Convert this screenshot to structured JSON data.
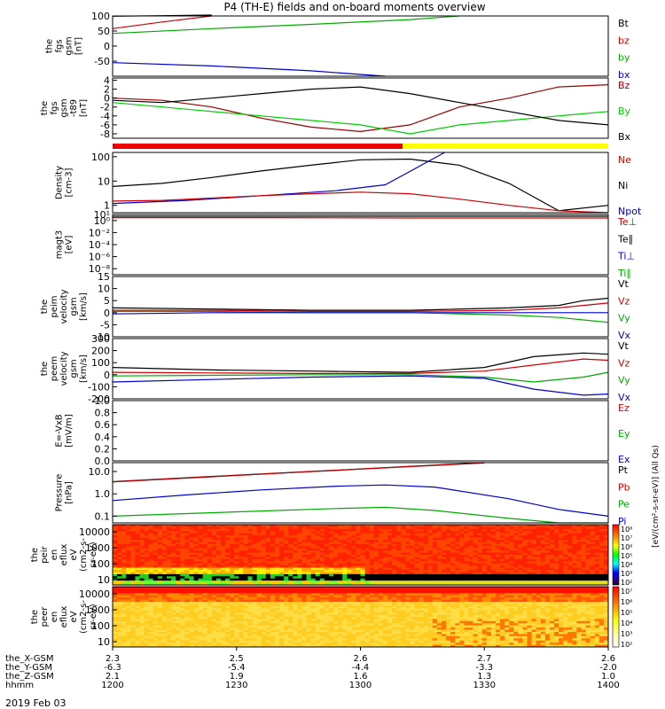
{
  "title": "P4 (TH-E) fields and on-board moments overview",
  "date_label": "2019 Feb 03",
  "colorbar_label": "[eV/(cm²-s-sr-eV)] (All Qs)",
  "colorbar_ticks": [
    "10⁸",
    "10⁷",
    "10⁶",
    "10⁵",
    "10⁴",
    "10³",
    "10²"
  ],
  "ephemeris": {
    "row_labels": [
      "the_X-GSM",
      "the_Y-GSM",
      "the_Z-GSM",
      "hhmm"
    ],
    "columns": [
      [
        "2.3",
        "-6.3",
        "2.1",
        "1200"
      ],
      [
        "2.5",
        "-5.4",
        "1.9",
        "1230"
      ],
      [
        "2.6",
        "-4.4",
        "1.6",
        "1300"
      ],
      [
        "2.7",
        "-3.3",
        "1.3",
        "1330"
      ],
      [
        "2.6",
        "-2.0",
        "1.0",
        "1400"
      ]
    ]
  },
  "chart_data": [
    {
      "type": "line",
      "ylabel": [
        "the",
        "fgs",
        "gsm",
        "[nT]"
      ],
      "ylim": [
        -100,
        100
      ],
      "yticks": [
        "100",
        "50",
        "0",
        "-50"
      ],
      "legend": [
        {
          "name": "Bt",
          "color": "#000000"
        },
        {
          "name": "bz",
          "color": "#cc0000"
        },
        {
          "name": "by",
          "color": "#00aa00"
        },
        {
          "name": "bx",
          "color": "#0000cc"
        }
      ],
      "series": [
        {
          "name": "Bt",
          "color": "#000000",
          "x": [
            0,
            0.1,
            0.2
          ],
          "y": [
            99,
            101,
            103
          ]
        },
        {
          "name": "bz",
          "color": "#cc0000",
          "x": [
            0,
            0.1,
            0.2
          ],
          "y": [
            58,
            80,
            100
          ]
        },
        {
          "name": "by",
          "color": "#00aa00",
          "x": [
            0,
            0.2,
            0.4,
            0.6,
            0.7
          ],
          "y": [
            42,
            58,
            72,
            88,
            100
          ]
        },
        {
          "name": "bx",
          "color": "#0000cc",
          "x": [
            0,
            0.2,
            0.4,
            0.55
          ],
          "y": [
            -55,
            -66,
            -82,
            -100
          ]
        }
      ]
    },
    {
      "type": "line",
      "ylabel": [
        "the",
        "fgs",
        "gsm",
        "-t89",
        "[nT]"
      ],
      "ylim": [
        -9,
        4.5
      ],
      "yticks": [
        "4",
        "2",
        "0",
        "-2",
        "-4",
        "-6",
        "-8"
      ],
      "legend": [
        {
          "name": "Bz",
          "color": "#990000"
        },
        {
          "name": "By",
          "color": "#00cc00"
        },
        {
          "name": "Bx",
          "color": "#000000"
        }
      ],
      "series": [
        {
          "name": "Bz",
          "color": "#990000",
          "x": [
            0,
            0.1,
            0.2,
            0.3,
            0.4,
            0.5,
            0.6,
            0.7,
            0.8,
            0.9,
            1.0
          ],
          "y": [
            0,
            -0.5,
            -2,
            -4.5,
            -6.5,
            -7.5,
            -6,
            -2,
            0,
            2.5,
            3
          ]
        },
        {
          "name": "By",
          "color": "#00cc00",
          "x": [
            0,
            0.1,
            0.2,
            0.3,
            0.4,
            0.5,
            0.6,
            0.7,
            0.8,
            0.9,
            1.0
          ],
          "y": [
            -1,
            -2,
            -3,
            -4,
            -5,
            -6,
            -8,
            -6,
            -5,
            -4,
            -3
          ]
        },
        {
          "name": "Bx",
          "color": "#000000",
          "x": [
            0,
            0.1,
            0.2,
            0.3,
            0.4,
            0.5,
            0.6,
            0.7,
            0.8,
            0.9,
            1.0
          ],
          "y": [
            -0.5,
            -1,
            0,
            1,
            2,
            2.5,
            1,
            -1,
            -3,
            -5,
            -6
          ]
        }
      ]
    },
    {
      "type": "line",
      "ylabel": [
        "Density",
        "[cm-3]"
      ],
      "ylog": true,
      "ylim": [
        0.5,
        150
      ],
      "yticks": [
        "100",
        "10",
        "1"
      ],
      "legend": [
        {
          "name": "Ne",
          "color": "#cc0000"
        },
        {
          "name": "Ni",
          "color": "#000000"
        },
        {
          "name": "Npot",
          "color": "#0000cc"
        }
      ],
      "series": [
        {
          "name": "Ni",
          "color": "#000000",
          "x": [
            0,
            0.1,
            0.2,
            0.3,
            0.4,
            0.5,
            0.6,
            0.7,
            0.8,
            0.9,
            1.0
          ],
          "y": [
            6,
            8,
            14,
            26,
            45,
            75,
            80,
            45,
            8,
            0.6,
            1
          ]
        },
        {
          "name": "Npot",
          "color": "#0000cc",
          "x": [
            0,
            0.15,
            0.3,
            0.45,
            0.55,
            0.6,
            0.67
          ],
          "y": [
            1.2,
            1.6,
            2.5,
            4,
            7,
            25,
            150
          ]
        },
        {
          "name": "Ne",
          "color": "#cc0000",
          "x": [
            0,
            0.1,
            0.2,
            0.3,
            0.4,
            0.5,
            0.6,
            0.7,
            0.8,
            0.9,
            1.0
          ],
          "y": [
            1.5,
            1.6,
            2,
            2.5,
            3,
            3.5,
            3,
            1.8,
            1,
            0.6,
            0.5
          ]
        }
      ]
    },
    {
      "type": "line",
      "ylabel": [
        "magt3",
        "[eV]"
      ],
      "ylog": true,
      "ylim": [
        1e-09,
        10.0
      ],
      "yticks": [
        "10¹",
        "10⁰",
        "10⁻²",
        "10⁻⁴",
        "10⁻⁶",
        "10⁻⁸"
      ],
      "legend": [
        {
          "name": "Te⊥",
          "color": "#cc0000"
        },
        {
          "name": "Te∥",
          "color": "#000000"
        },
        {
          "name": "Ti⊥",
          "color": "#0000cc"
        },
        {
          "name": "Ti∥",
          "color": "#00aa00"
        }
      ],
      "series": [
        {
          "name": "Te⊥",
          "color": "#cc0000",
          "x": [
            0,
            0.3,
            0.6,
            1.0
          ],
          "y": [
            3,
            3,
            2.6,
            2.6
          ]
        },
        {
          "name": "Te∥",
          "color": "#000000",
          "x": [
            0,
            1.0
          ],
          "y": [
            5,
            5
          ]
        }
      ]
    },
    {
      "type": "line",
      "ylabel": [
        "the",
        "peim",
        "velocity",
        "gsm",
        "[km/s]"
      ],
      "ylim": [
        -10,
        15
      ],
      "yticks": [
        "15",
        "10",
        "5",
        "0",
        "-5",
        "-10"
      ],
      "legend": [
        {
          "name": "Vt",
          "color": "#000000"
        },
        {
          "name": "Vz",
          "color": "#cc0000"
        },
        {
          "name": "Vy",
          "color": "#00aa00"
        },
        {
          "name": "Vx",
          "color": "#0000cc"
        }
      ],
      "series": [
        {
          "name": "Vt",
          "color": "#000000",
          "x": [
            0,
            0.2,
            0.4,
            0.6,
            0.8,
            0.9,
            0.95,
            1.0
          ],
          "y": [
            2,
            1.5,
            1,
            1,
            2,
            3,
            5,
            6
          ]
        },
        {
          "name": "Vz",
          "color": "#cc0000",
          "x": [
            0,
            0.2,
            0.4,
            0.6,
            0.8,
            0.9,
            0.95,
            1.0
          ],
          "y": [
            1,
            1,
            0.5,
            0.5,
            1,
            2,
            3,
            4
          ]
        },
        {
          "name": "Vy",
          "color": "#00aa00",
          "x": [
            0,
            0.2,
            0.4,
            0.6,
            0.8,
            0.9,
            0.95,
            1.0
          ],
          "y": [
            0.5,
            0.5,
            0,
            0,
            -1,
            -2,
            -3,
            -4
          ]
        },
        {
          "name": "Vx",
          "color": "#0000cc",
          "x": [
            0,
            0.2,
            0.4,
            0.6,
            0.8,
            1.0
          ],
          "y": [
            -0.5,
            0,
            0,
            0,
            0,
            0
          ]
        }
      ]
    },
    {
      "type": "line",
      "ylabel": [
        "the",
        "peem",
        "velocity",
        "gsm",
        "[km/s]"
      ],
      "ylim": [
        -200,
        300
      ],
      "yticks": [
        "300",
        "200",
        "100",
        "0",
        "-100",
        "-200"
      ],
      "legend": [
        {
          "name": "Vt",
          "color": "#000000"
        },
        {
          "name": "Vz",
          "color": "#cc0000"
        },
        {
          "name": "Vy",
          "color": "#00aa00"
        },
        {
          "name": "Vx",
          "color": "#0000cc"
        }
      ],
      "series": [
        {
          "name": "Vt",
          "color": "#000000",
          "x": [
            0,
            0.2,
            0.4,
            0.6,
            0.75,
            0.85,
            0.95,
            1.0
          ],
          "y": [
            60,
            40,
            30,
            20,
            60,
            150,
            180,
            170
          ]
        },
        {
          "name": "Vz",
          "color": "#cc0000",
          "x": [
            0,
            0.2,
            0.4,
            0.6,
            0.75,
            0.85,
            0.95,
            1.0
          ],
          "y": [
            20,
            15,
            10,
            10,
            30,
            80,
            130,
            120
          ]
        },
        {
          "name": "Vy",
          "color": "#00aa00",
          "x": [
            0,
            0.2,
            0.4,
            0.6,
            0.75,
            0.85,
            0.95,
            1.0
          ],
          "y": [
            -10,
            -5,
            0,
            0,
            -20,
            -60,
            -20,
            20
          ]
        },
        {
          "name": "Vx",
          "color": "#0000cc",
          "x": [
            0,
            0.2,
            0.4,
            0.6,
            0.75,
            0.85,
            0.95,
            1.0
          ],
          "y": [
            -60,
            -40,
            -20,
            -10,
            -30,
            -120,
            -170,
            -160
          ]
        }
      ]
    },
    {
      "type": "line",
      "ylabel": [
        "E=-VxB",
        "[mV/m]"
      ],
      "ylim": [
        0,
        1
      ],
      "yticks": [
        "1.0",
        "0.8",
        "0.6",
        "0.4",
        "0.2",
        "0.0"
      ],
      "legend": [
        {
          "name": "Ez",
          "color": "#cc0000"
        },
        {
          "name": "Ey",
          "color": "#00aa00"
        },
        {
          "name": "Ex",
          "color": "#0000cc"
        }
      ],
      "series": []
    },
    {
      "type": "line",
      "ylabel": [
        "Pressure",
        "[nPa]"
      ],
      "ylog": true,
      "ylim": [
        0.05,
        25
      ],
      "yticks": [
        "10.0",
        "1.0",
        "0.1"
      ],
      "legend": [
        {
          "name": "Pt",
          "color": "#000000"
        },
        {
          "name": "Pb",
          "color": "#cc0000"
        },
        {
          "name": "Pe",
          "color": "#00aa00"
        },
        {
          "name": "Pi",
          "color": "#0000cc"
        }
      ],
      "series": [
        {
          "name": "Pt",
          "color": "#000000",
          "x": [
            0,
            0.2,
            0.4,
            0.6,
            0.75
          ],
          "y": [
            3.5,
            6,
            10,
            17,
            25
          ]
        },
        {
          "name": "Pb",
          "color": "#cc0000",
          "x": [
            0,
            0.2,
            0.4,
            0.6,
            0.75
          ],
          "y": [
            3.4,
            5.8,
            9.8,
            16.5,
            24
          ]
        },
        {
          "name": "Pi",
          "color": "#0000cc",
          "x": [
            0,
            0.15,
            0.3,
            0.45,
            0.55,
            0.65,
            0.8,
            0.9,
            1.0
          ],
          "y": [
            0.5,
            0.9,
            1.5,
            2.2,
            2.5,
            2,
            0.6,
            0.2,
            0.1
          ]
        },
        {
          "name": "Pe",
          "color": "#00aa00",
          "x": [
            0,
            0.15,
            0.3,
            0.45,
            0.55,
            0.65,
            0.8,
            0.9,
            1.0
          ],
          "y": [
            0.1,
            0.13,
            0.17,
            0.22,
            0.25,
            0.18,
            0.08,
            0.05,
            0.05
          ]
        }
      ]
    },
    {
      "type": "heatmap",
      "ylabel": [
        "the",
        "peir",
        "en",
        "eflux",
        "eV",
        "(cm2-s-",
        "sr-eV)"
      ],
      "yticks": [
        "10000",
        "1000",
        "100",
        "10"
      ],
      "note": "ion energy flux spectrogram"
    },
    {
      "type": "heatmap",
      "ylabel": [
        "the",
        "peer",
        "en",
        "eflux",
        "eV",
        "(cm2-s-",
        "sr-eV)"
      ],
      "yticks": [
        "10000",
        "1000",
        "100",
        "10"
      ],
      "note": "electron energy flux spectrogram"
    }
  ]
}
